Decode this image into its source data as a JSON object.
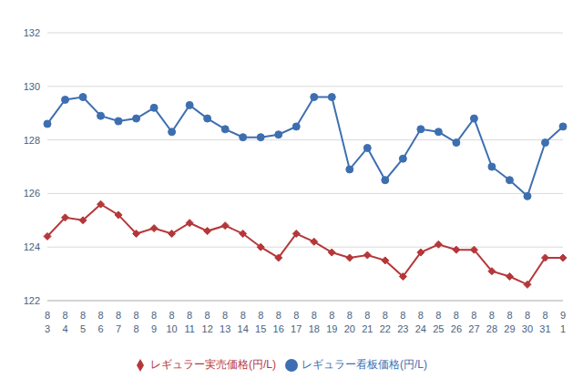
{
  "chart_data": {
    "type": "line",
    "categories": [
      "8\n3",
      "8\n4",
      "8\n5",
      "8\n6",
      "8\n7",
      "8\n8",
      "8\n9",
      "8\n10",
      "8\n11",
      "8\n12",
      "8\n13",
      "8\n14",
      "8\n15",
      "8\n16",
      "8\n17",
      "8\n18",
      "8\n19",
      "8\n20",
      "8\n21",
      "8\n22",
      "8\n23",
      "8\n24",
      "8\n25",
      "8\n26",
      "8\n27",
      "8\n28",
      "8\n29",
      "8\n30",
      "8\n31",
      "9\n1"
    ],
    "series": [
      {
        "name": "レギュラー看板価格(円/L)",
        "color": "#3d6fb0",
        "marker": "circle",
        "values": [
          128.6,
          129.5,
          129.6,
          128.9,
          128.7,
          128.8,
          129.2,
          128.3,
          129.3,
          128.8,
          128.4,
          128.1,
          128.1,
          128.2,
          128.5,
          129.6,
          129.6,
          126.9,
          127.7,
          126.5,
          127.3,
          128.4,
          128.3,
          127.9,
          128.8,
          127.0,
          126.5,
          125.9,
          127.9,
          128.5
        ]
      },
      {
        "name": "レギュラー実売価格(円/L)",
        "color": "#b5373a",
        "marker": "diamond",
        "values": [
          124.4,
          125.1,
          125.0,
          125.6,
          125.2,
          124.5,
          124.7,
          124.5,
          124.9,
          124.6,
          124.8,
          124.5,
          124.0,
          123.6,
          124.5,
          124.2,
          123.8,
          123.6,
          123.7,
          123.5,
          122.9,
          123.8,
          124.1,
          123.9,
          123.9,
          123.1,
          122.9,
          122.6,
          123.6,
          123.6
        ]
      }
    ],
    "ylim": [
      122,
      132
    ],
    "yticks": [
      122,
      124,
      126,
      128,
      130,
      132
    ],
    "grid": true,
    "legend": "bottom"
  }
}
